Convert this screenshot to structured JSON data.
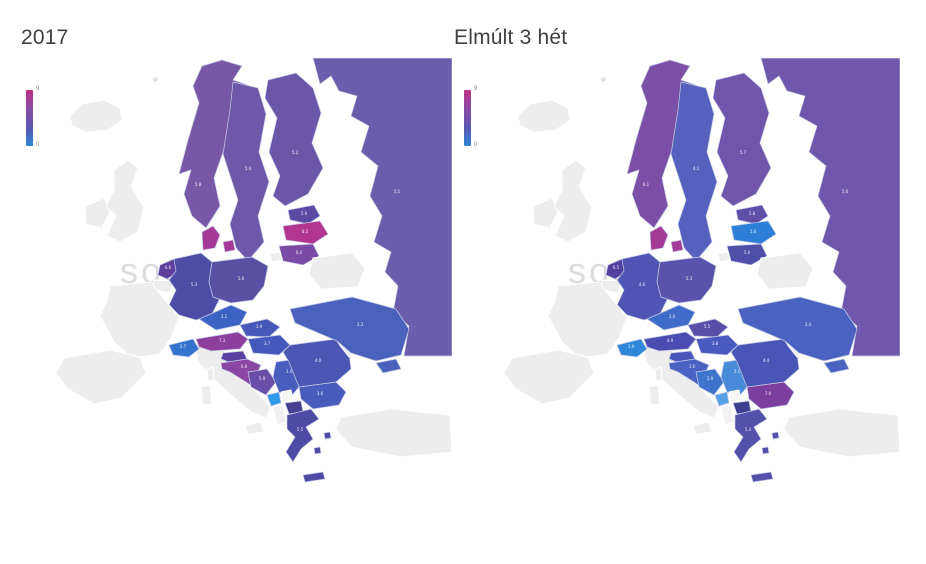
{
  "page": {
    "background": "#ffffff",
    "watermark_text": "sonline"
  },
  "legend": {
    "top_label": "9",
    "bottom_label": "0",
    "gradient": [
      "#bf2f86",
      "#8a4da5",
      "#5b55b2",
      "#2e86d6"
    ]
  },
  "no_data_color": "#ededed",
  "panels": [
    {
      "title": "2017",
      "countries": {
        "iceland": {
          "label": null,
          "color": "#ededed"
        },
        "ireland": {
          "label": null,
          "color": "#ededed"
        },
        "uk": {
          "label": null,
          "color": "#ededed"
        },
        "france": {
          "label": null,
          "color": "#ededed"
        },
        "iberia": {
          "label": null,
          "color": "#ededed"
        },
        "italy": {
          "label": null,
          "color": "#ededed"
        },
        "belgium": {
          "label": null,
          "color": "#ededed"
        },
        "belarus": {
          "label": null,
          "color": "#ededed"
        },
        "moldova": {
          "label": null,
          "color": "#ededed"
        },
        "turkey": {
          "label": null,
          "color": "#ededed"
        },
        "kaliningrad": {
          "label": null,
          "color": "#ededed"
        },
        "islet": {
          "label": null,
          "color": "#e4e4e4"
        },
        "kosovo": {
          "label": null,
          "color": "#f5f5f5"
        },
        "albania": {
          "label": null,
          "color": "#efefef"
        },
        "norway": {
          "label": "5.8",
          "color": "#7857a6"
        },
        "sweden": {
          "label": "5.4",
          "color": "#6e58a9"
        },
        "finland": {
          "label": "5.2",
          "color": "#6b57a8"
        },
        "russia": {
          "label": "5.1",
          "color": "#6a5dac"
        },
        "estonia": {
          "label": "5.9",
          "color": "#5c4aa2"
        },
        "latvia": {
          "label": "8.2",
          "color": "#b2358f"
        },
        "lithuania": {
          "label": "6.4",
          "color": "#7a4ba6"
        },
        "denmark": {
          "label": null,
          "color": "#a43997"
        },
        "netherlands": {
          "label": "6.6",
          "color": "#5d3f9e"
        },
        "germany": {
          "label": "5.3",
          "color": "#4f4ca6"
        },
        "poland": {
          "label": "5.6",
          "color": "#5950a3"
        },
        "czech": {
          "label": "3.1",
          "color": "#3c63c4"
        },
        "slovakia": {
          "label": "3.9",
          "color": "#4858b8"
        },
        "austria": {
          "label": "7.3",
          "color": "#8d3f9e"
        },
        "switzerland": {
          "label": "2.7",
          "color": "#3473cd"
        },
        "hungary": {
          "label": "3.7",
          "color": "#4558bc"
        },
        "slovenia": {
          "label": null,
          "color": "#5942a0"
        },
        "croatia": {
          "label": "6.8",
          "color": "#8a46a2"
        },
        "bosnia": {
          "label": "5.9",
          "color": "#6a4fa8"
        },
        "serbia": {
          "label": "3.4",
          "color": "#4a5cbc"
        },
        "montenegro": {
          "label": null,
          "color": "#2e9ae9"
        },
        "macedonia": {
          "label": null,
          "color": "#473f92"
        },
        "greece": {
          "label": "5.5",
          "color": "#4f4aa4"
        },
        "bulgaria": {
          "label": "3.6",
          "color": "#4a5cbb"
        },
        "romania": {
          "label": "4.0",
          "color": "#4c56b3"
        },
        "ukraine": {
          "label": "3.3",
          "color": "#4a62bc"
        },
        "crimea": {
          "label": null,
          "color": "#4a62bc"
        }
      }
    },
    {
      "title": "Elmúlt 3 hét",
      "countries": {
        "iceland": {
          "label": null,
          "color": "#ededed"
        },
        "ireland": {
          "label": null,
          "color": "#ededed"
        },
        "uk": {
          "label": null,
          "color": "#ededed"
        },
        "france": {
          "label": null,
          "color": "#ededed"
        },
        "iberia": {
          "label": null,
          "color": "#ededed"
        },
        "italy": {
          "label": null,
          "color": "#ededed"
        },
        "belgium": {
          "label": null,
          "color": "#ededed"
        },
        "belarus": {
          "label": null,
          "color": "#ededed"
        },
        "moldova": {
          "label": null,
          "color": "#ededed"
        },
        "turkey": {
          "label": null,
          "color": "#ededed"
        },
        "kaliningrad": {
          "label": null,
          "color": "#ededed"
        },
        "islet": {
          "label": null,
          "color": "#e4e4e4"
        },
        "kosovo": {
          "label": null,
          "color": "#f7f7f7"
        },
        "albania": {
          "label": null,
          "color": "#f2f2f2"
        },
        "norway": {
          "label": "6.1",
          "color": "#7a4fa5"
        },
        "sweden": {
          "label": "4.1",
          "color": "#5561bc"
        },
        "finland": {
          "label": "5.7",
          "color": "#6f56ab"
        },
        "russia": {
          "label": "5.6",
          "color": "#6f58ab"
        },
        "estonia": {
          "label": "5.8",
          "color": "#5f4fa7"
        },
        "latvia": {
          "label": "1.6",
          "color": "#2e7fd7"
        },
        "lithuania": {
          "label": "5.0",
          "color": "#4f4fa9"
        },
        "denmark": {
          "label": null,
          "color": "#a23a96"
        },
        "netherlands": {
          "label": "6.5",
          "color": "#53409f"
        },
        "germany": {
          "label": "4.6",
          "color": "#5055b3"
        },
        "poland": {
          "label": "5.3",
          "color": "#5a52ab"
        },
        "czech": {
          "label": "3.0",
          "color": "#3f6bc9"
        },
        "slovakia": {
          "label": "5.5",
          "color": "#5a4fa8"
        },
        "austria": {
          "label": "4.9",
          "color": "#4a4cb1"
        },
        "switzerland": {
          "label": "1.9",
          "color": "#2f87d9"
        },
        "hungary": {
          "label": "3.8",
          "color": "#4a5ac1"
        },
        "slovenia": {
          "label": null,
          "color": "#4a56b8"
        },
        "croatia": {
          "label": "3.6",
          "color": "#4a62c1"
        },
        "bosnia": {
          "label": "2.9",
          "color": "#3f74cd"
        },
        "serbia": {
          "label": "2.1",
          "color": "#4a8bd9"
        },
        "montenegro": {
          "label": null,
          "color": "#57a1e9"
        },
        "macedonia": {
          "label": null,
          "color": "#3f3f90"
        },
        "greece": {
          "label": "5.4",
          "color": "#5550a9"
        },
        "bulgaria": {
          "label": "7.0",
          "color": "#7c3f9e"
        },
        "romania": {
          "label": "4.4",
          "color": "#4a56b6"
        },
        "ukraine": {
          "label": "3.4",
          "color": "#4a63c1"
        },
        "crimea": {
          "label": null,
          "color": "#4a63c1"
        }
      }
    }
  ],
  "chart_data": [
    {
      "type": "heatmap",
      "subtype": "choropleth-map",
      "title": "2017",
      "region": "Europe",
      "legend_position": "top-left",
      "value_scale": {
        "min": 0,
        "max": 9,
        "low_color": "#2e86d6",
        "high_color": "#bf2f86"
      },
      "categories": [
        "Norway",
        "Sweden",
        "Finland",
        "Russia",
        "Estonia",
        "Latvia",
        "Lithuania",
        "Denmark",
        "Netherlands",
        "Germany",
        "Poland",
        "Czechia",
        "Slovakia",
        "Austria",
        "Switzerland",
        "Hungary",
        "Slovenia",
        "Croatia",
        "Bosnia and Herzegovina",
        "Serbia",
        "Montenegro",
        "North Macedonia",
        "Greece",
        "Bulgaria",
        "Romania",
        "Ukraine"
      ],
      "values": [
        5.8,
        5.4,
        5.2,
        5.1,
        5.9,
        8.2,
        6.4,
        8.0,
        6.6,
        5.3,
        5.6,
        3.1,
        3.9,
        7.3,
        2.7,
        3.7,
        6.1,
        6.8,
        5.9,
        3.4,
        0.9,
        7.0,
        5.5,
        3.6,
        4.0,
        3.3
      ],
      "no_data": [
        "Iceland",
        "Ireland",
        "United Kingdom",
        "France",
        "Spain",
        "Portugal",
        "Italy",
        "Belgium",
        "Belarus",
        "Moldova",
        "Albania",
        "Kosovo",
        "Turkey"
      ]
    },
    {
      "type": "heatmap",
      "subtype": "choropleth-map",
      "title": "Elmúlt 3 hét",
      "region": "Europe",
      "legend_position": "top-left",
      "value_scale": {
        "min": 0,
        "max": 9,
        "low_color": "#2e86d6",
        "high_color": "#bf2f86"
      },
      "categories": [
        "Norway",
        "Sweden",
        "Finland",
        "Russia",
        "Estonia",
        "Latvia",
        "Lithuania",
        "Denmark",
        "Netherlands",
        "Germany",
        "Poland",
        "Czechia",
        "Slovakia",
        "Austria",
        "Switzerland",
        "Hungary",
        "Slovenia",
        "Croatia",
        "Bosnia and Herzegovina",
        "Serbia",
        "Montenegro",
        "North Macedonia",
        "Greece",
        "Bulgaria",
        "Romania",
        "Ukraine"
      ],
      "values": [
        6.1,
        4.1,
        5.7,
        5.6,
        5.8,
        1.6,
        5.0,
        8.0,
        6.5,
        4.6,
        5.3,
        3.0,
        5.5,
        4.9,
        1.9,
        3.8,
        4.0,
        3.6,
        2.9,
        2.1,
        1.3,
        6.9,
        5.4,
        7.0,
        4.4,
        3.4
      ],
      "no_data": [
        "Iceland",
        "Ireland",
        "United Kingdom",
        "France",
        "Spain",
        "Portugal",
        "Italy",
        "Belgium",
        "Belarus",
        "Moldova",
        "Albania",
        "Kosovo",
        "Turkey"
      ]
    }
  ]
}
